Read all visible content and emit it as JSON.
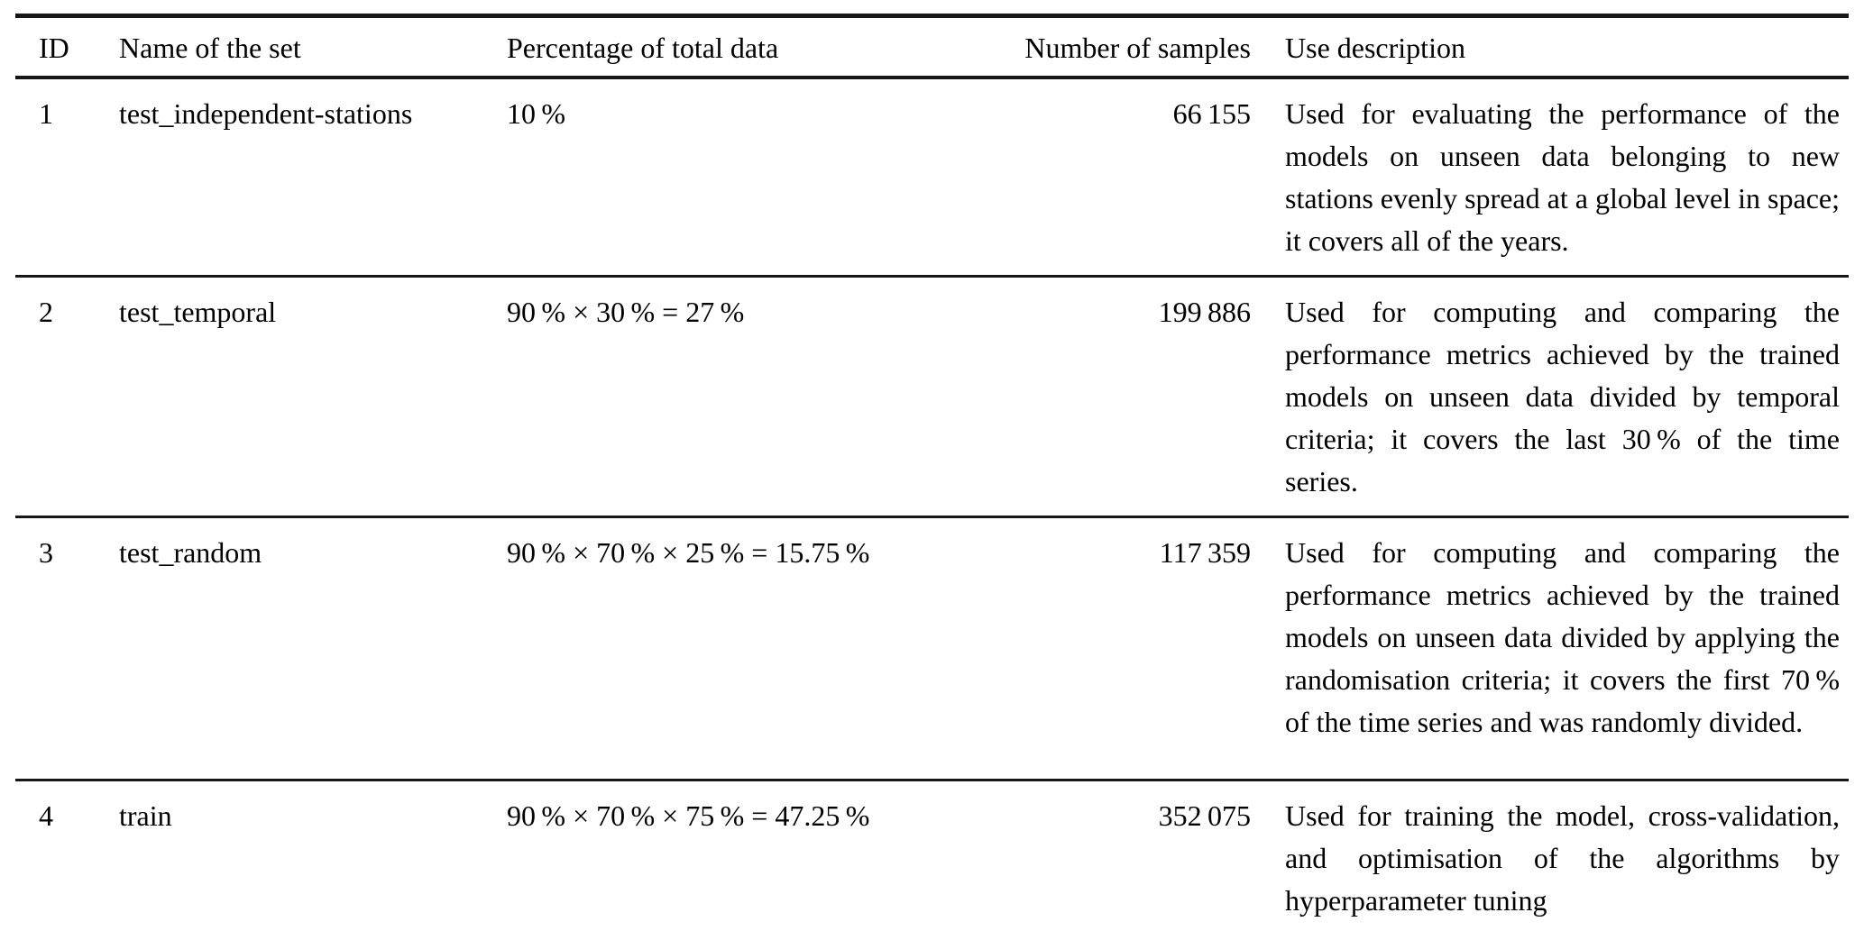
{
  "table": {
    "headers": {
      "id": "ID",
      "name": "Name of the set",
      "percentage": "Percentage of total data",
      "samples": "Number of samples",
      "description": "Use description"
    },
    "rows": [
      {
        "id": "1",
        "name": "test_independent-stations",
        "percentage": "10 %",
        "samples": "66 155",
        "description": "Used for evaluating the performance of the models on unseen data belonging to new stations evenly spread at a global level in space; it covers all of the years."
      },
      {
        "id": "2",
        "name": "test_temporal",
        "percentage": "90 % × 30 % = 27 %",
        "samples": "199 886",
        "description": "Used for computing and comparing the performance metrics achieved by the trained models on unseen data divided by temporal criteria; it covers the last 30 % of the time series."
      },
      {
        "id": "3",
        "name": "test_random",
        "percentage": "90 % × 70 % × 25 % = 15.75 %",
        "samples": "117 359",
        "description": "Used for computing and comparing the performance metrics achieved by the trained models on unseen data divided by applying the randomisation criteria; it covers the first 70 % of the time series and was randomly divided."
      },
      {
        "id": "4",
        "name": "train",
        "percentage": "90 % × 70 % × 75 % = 47.25 %",
        "samples": "352 075",
        "description": "Used for training the model, cross-validation, and optimisation of the algorithms by hyperparameter tuning"
      }
    ]
  },
  "colors": {
    "text": "#000000",
    "rule": "#161616",
    "background": "#ffffff"
  },
  "chart_data": {
    "type": "table",
    "columns": [
      "ID",
      "Name of the set",
      "Percentage of total data",
      "Number of samples",
      "Use description"
    ],
    "rows": [
      [
        "1",
        "test_independent-stations",
        "10 %",
        66155,
        "Used for evaluating the performance of the models on unseen data belonging to new stations evenly spread at a global level in space; it covers all of the years."
      ],
      [
        "2",
        "test_temporal",
        "90 % × 30 % = 27 %",
        199886,
        "Used for computing and comparing the performance metrics achieved by the trained models on unseen data divided by temporal criteria; it covers the last 30 % of the time series."
      ],
      [
        "3",
        "test_random",
        "90 % × 70 % × 25 % = 15.75 %",
        117359,
        "Used for computing and comparing the performance metrics achieved by the trained models on unseen data divided by applying the randomisation criteria; it covers the first 70 % of the time series and was randomly divided."
      ],
      [
        "4",
        "train",
        "90 % × 70 % × 75 % = 47.25 %",
        352075,
        "Used for training the model, cross-validation, and optimisation of the algorithms by hyperparameter tuning"
      ]
    ]
  }
}
